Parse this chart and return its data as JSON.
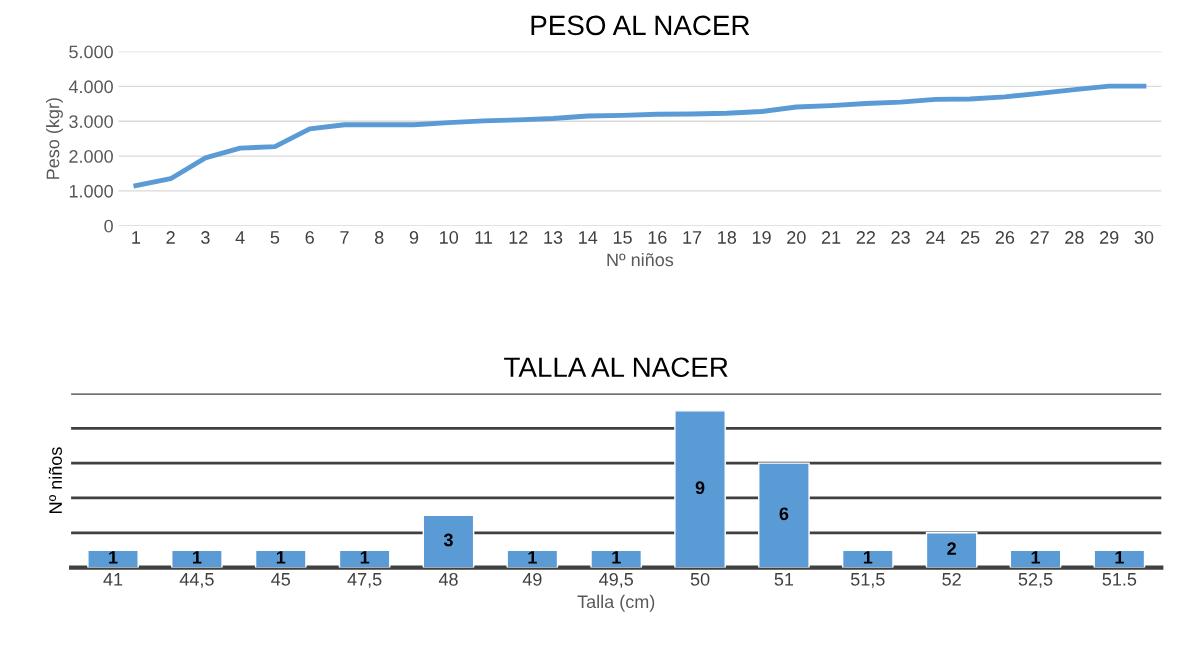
{
  "chart_data": [
    {
      "type": "line",
      "title": "PESO AL NACER",
      "xlabel": "Nº niños",
      "ylabel": "Peso (kgr)",
      "categories": [
        "1",
        "2",
        "3",
        "4",
        "5",
        "6",
        "7",
        "8",
        "9",
        "10",
        "11",
        "12",
        "13",
        "14",
        "15",
        "16",
        "17",
        "18",
        "19",
        "20",
        "21",
        "22",
        "23",
        "24",
        "25",
        "26",
        "27",
        "28",
        "29",
        "30"
      ],
      "series": [
        {
          "color": "#5b9bd5",
          "values": [
            1150,
            1350,
            1950,
            2230,
            2270,
            2780,
            2900,
            2900,
            2900,
            2960,
            3010,
            3040,
            3080,
            3150,
            3170,
            3200,
            3210,
            3230,
            3280,
            3410,
            3450,
            3510,
            3550,
            3630,
            3640,
            3700,
            3800,
            3910,
            4010,
            4010
          ]
        }
      ],
      "ylim": [
        0,
        5000
      ],
      "yticks": [
        0,
        {
          "value": 1000,
          "label": "1.000"
        },
        {
          "value": 2000,
          "label": "2.000"
        },
        {
          "value": 3000,
          "label": "3.000"
        },
        {
          "value": 4000,
          "label": "4.000"
        },
        {
          "value": 5000,
          "label": "5.000"
        }
      ],
      "grid": "y",
      "legend": false,
      "marker": "none",
      "line_style": "solid"
    },
    {
      "type": "bar",
      "title": "TALLA AL NACER",
      "xlabel": "Talla (cm)",
      "ylabel": "Nº niños",
      "categories": [
        "41",
        "44,5",
        "45",
        "47,5",
        "48",
        "49",
        "49,5",
        "50",
        "51",
        "51,5",
        "52",
        "52,5",
        "51.5"
      ],
      "values": [
        1,
        1,
        1,
        1,
        3,
        1,
        1,
        9,
        6,
        1,
        2,
        1,
        1
      ],
      "color": "#5b9bd5",
      "ylim": [
        0,
        10
      ],
      "yticks": [
        0,
        {
          "value": 2,
          "label": null
        },
        {
          "value": 4,
          "label": null
        },
        {
          "value": 6,
          "label": null
        },
        {
          "value": 8,
          "label": null
        },
        {
          "value": 10,
          "label": null
        }
      ],
      "grid": "y",
      "data_labels": true,
      "tick_labels": "x",
      "legend": false
    }
  ]
}
